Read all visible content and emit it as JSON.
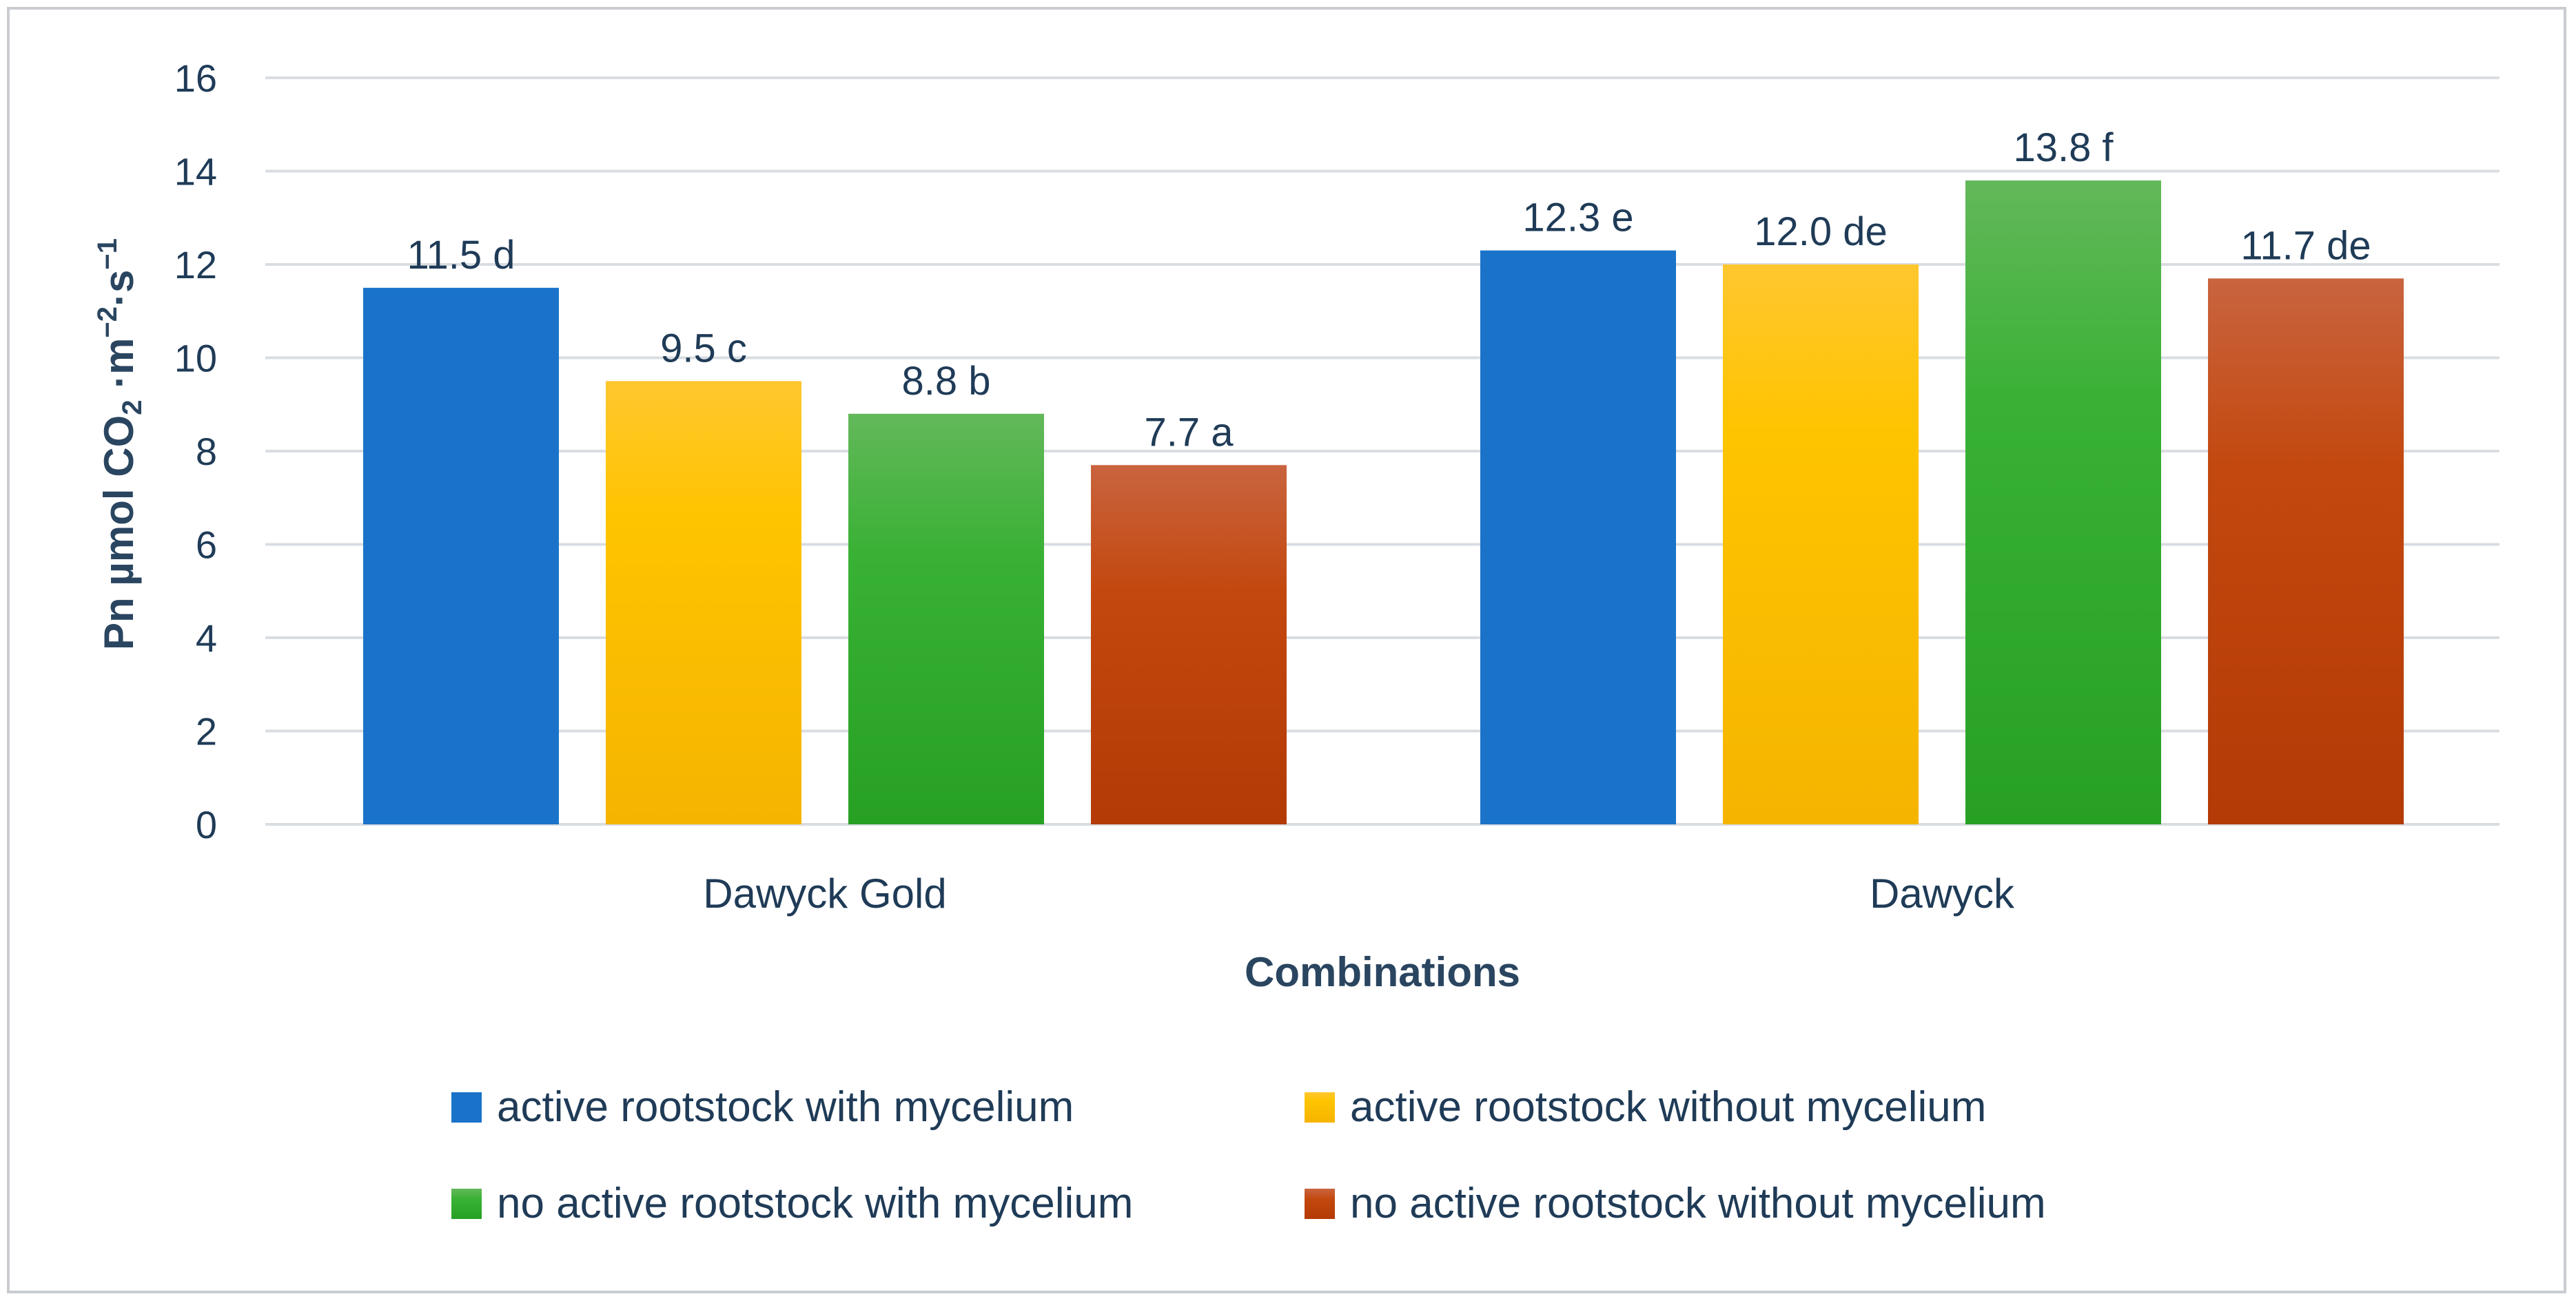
{
  "chart_data": {
    "type": "bar",
    "title": "",
    "xlabel": "Combinations",
    "ylabel": "Pn µmol CO₂·m⁻²·s⁻¹",
    "ylim": [
      0,
      16
    ],
    "yticks": [
      0,
      2,
      4,
      6,
      8,
      10,
      12,
      14,
      16
    ],
    "grid": true,
    "legend_position": "bottom",
    "categories": [
      "Dawyck Gold",
      "Dawyck"
    ],
    "series": [
      {
        "name": "active rootstock with mycelium",
        "color": "#1a73c9",
        "values": [
          11.5,
          12.3
        ],
        "labels": [
          "11.5 d",
          "12.3 e"
        ]
      },
      {
        "name": "active rootstock without mycelium",
        "color": "#ffc000",
        "values": [
          9.5,
          12.0
        ],
        "labels": [
          "9.5 c",
          "12.0 de"
        ]
      },
      {
        "name": "no active rootstock with mycelium",
        "color": "#3aa935",
        "values": [
          8.8,
          13.8
        ],
        "labels": [
          "8.8  b",
          "13.8 f"
        ]
      },
      {
        "name": "no active rootstock without mycelium",
        "color": "#c0440c",
        "values": [
          7.7,
          11.7
        ],
        "labels": [
          "7.7  a",
          "11.7 de"
        ]
      }
    ]
  }
}
